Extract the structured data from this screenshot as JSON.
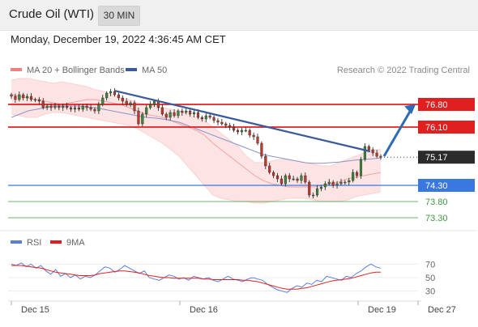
{
  "header": {
    "title": "Crude Oil (WTI)",
    "timeframe": "30 MIN"
  },
  "datetime": "Monday, December 19, 2022 4:36:45 AM CET",
  "legend": {
    "bollinger": {
      "label": "MA 20 + Bollinger Bands",
      "color": "#f08080"
    },
    "ma50": {
      "label": "MA 50",
      "color": "#3a5a9a"
    },
    "credit": "Research © 2022 Trading Central"
  },
  "rsi_legend": {
    "rsi": {
      "label": "RSI",
      "color": "#5b7fd6"
    },
    "ma9": {
      "label": "9MA",
      "color": "#e02020"
    }
  },
  "colors": {
    "resistance": "#e02020",
    "support_main": "#3a78e0",
    "support_minor": "#3c9a3c",
    "trend": "#3a5a9a",
    "current": "#222222"
  },
  "chart_data": {
    "type": "candlestick",
    "instrument": "Crude Oil (WTI)",
    "timeframe": "30 MIN",
    "x_tick_labels": [
      "Dec 15",
      "Dec 16",
      "Dec 19",
      "Dec 27"
    ],
    "y_ylim": [
      72.9,
      77.6
    ],
    "price_levels": [
      {
        "value": 76.8,
        "label": "76.80",
        "kind": "resistance"
      },
      {
        "value": 76.1,
        "label": "76.10",
        "kind": "resistance"
      },
      {
        "value": 75.17,
        "label": "75.17",
        "kind": "current"
      },
      {
        "value": 74.3,
        "label": "74.30",
        "kind": "support"
      },
      {
        "value": 73.8,
        "label": "73.80",
        "kind": "support"
      },
      {
        "value": 73.3,
        "label": "73.30",
        "kind": "support"
      }
    ],
    "closes": [
      77.05,
      76.95,
      77.1,
      77.0,
      77.05,
      76.95,
      76.95,
      76.9,
      76.7,
      76.75,
      76.7,
      76.75,
      76.7,
      76.75,
      76.7,
      76.65,
      76.7,
      76.65,
      76.75,
      76.7,
      76.65,
      76.6,
      76.8,
      77.0,
      77.15,
      77.2,
      77.1,
      77.0,
      76.9,
      76.8,
      76.85,
      76.6,
      76.2,
      76.5,
      76.7,
      76.8,
      76.9,
      76.7,
      76.5,
      76.4,
      76.55,
      76.45,
      76.6,
      76.55,
      76.6,
      76.5,
      76.55,
      76.4,
      76.35,
      76.45,
      76.4,
      76.3,
      76.25,
      76.2,
      76.15,
      76.1,
      76.0,
      75.95,
      76.0,
      76.0,
      75.85,
      75.8,
      75.6,
      75.2,
      74.9,
      74.7,
      74.6,
      74.5,
      74.35,
      74.6,
      74.5,
      74.5,
      74.45,
      74.6,
      74.4,
      74.0,
      74.0,
      74.2,
      74.25,
      74.35,
      74.4,
      74.3,
      74.35,
      74.4,
      74.4,
      74.45,
      74.7,
      74.6,
      75.1,
      75.5,
      75.4,
      75.3,
      75.2,
      75.17
    ],
    "bollinger": {
      "upper": [
        77.55,
        77.6,
        77.6,
        77.55,
        77.5,
        77.45,
        77.5,
        77.45,
        77.4,
        77.35,
        77.25,
        77.2,
        77.1,
        77.0,
        76.95,
        76.85,
        76.8,
        76.75,
        76.7,
        76.65,
        76.6,
        76.5,
        76.4,
        76.3,
        76.1,
        75.9,
        75.7,
        75.5,
        75.2,
        75.0,
        75.0,
        75.05,
        75.1,
        75.1,
        75.05,
        75.0,
        74.95,
        74.9,
        74.9,
        75.0,
        75.1,
        75.2,
        75.3,
        75.4,
        75.4
      ],
      "middle": [
        77.1,
        77.05,
        77.0,
        76.95,
        76.9,
        76.85,
        76.8,
        76.85,
        76.9,
        76.95,
        76.95,
        76.9,
        76.85,
        76.8,
        76.7,
        76.6,
        76.5,
        76.45,
        76.4,
        76.3,
        76.2,
        76.1,
        76.0,
        75.85,
        75.6,
        75.4,
        75.2,
        75.0,
        74.8,
        74.6,
        74.45,
        74.35,
        74.3,
        74.25,
        74.25,
        74.25,
        74.25,
        74.3,
        74.35,
        74.4,
        74.5,
        74.55,
        74.6,
        74.65,
        74.7
      ],
      "lower": [
        76.5,
        76.45,
        76.4,
        76.4,
        76.5,
        76.55,
        76.55,
        76.5,
        76.45,
        76.4,
        76.35,
        76.3,
        76.25,
        76.2,
        76.15,
        76.05,
        75.9,
        75.75,
        75.6,
        75.4,
        75.2,
        74.9,
        74.6,
        74.3,
        74.0,
        73.9,
        73.85,
        73.8,
        73.8,
        73.75,
        73.75,
        73.8,
        73.85,
        73.9,
        73.9,
        73.9,
        73.85,
        73.8,
        73.8,
        73.8,
        73.85,
        73.95,
        74.0,
        74.05,
        74.1
      ]
    },
    "ma50": [
      76.4,
      76.5,
      76.6,
      76.65,
      76.7,
      76.75,
      76.75,
      76.75,
      76.75,
      76.72,
      76.7,
      76.65,
      76.6,
      76.55,
      76.5,
      76.45,
      76.4,
      76.38,
      76.35,
      76.3,
      76.25,
      76.15,
      76.05,
      75.95,
      75.85,
      75.75,
      75.65,
      75.55,
      75.45,
      75.35,
      75.25,
      75.2,
      75.15,
      75.1,
      75.05,
      75.0,
      74.98,
      74.98,
      75.0,
      75.02,
      75.05,
      75.08,
      75.1,
      75.12,
      75.15
    ],
    "trendline": {
      "from": {
        "bar": 39,
        "price": 77.22
      },
      "to": {
        "bar": 135,
        "price": 75.35
      }
    },
    "arrow": {
      "from_price": 75.2,
      "to_price": 76.8
    },
    "rsi": {
      "ylim": [
        20,
        80
      ],
      "tick_labels": [
        70,
        50,
        30
      ],
      "rsi_values": [
        70,
        68,
        72,
        66,
        70,
        64,
        68,
        60,
        55,
        62,
        52,
        56,
        50,
        54,
        48,
        52,
        50,
        54,
        60,
        66,
        64,
        58,
        62,
        68,
        64,
        60,
        56,
        60,
        50,
        48,
        46,
        50,
        54,
        52,
        48,
        50,
        46,
        52,
        50,
        48,
        50,
        46,
        44,
        48,
        52,
        48,
        46,
        44,
        48,
        50,
        48,
        46,
        40,
        36,
        32,
        30,
        28,
        34,
        38,
        36,
        42,
        40,
        46,
        44,
        52,
        50,
        48,
        46,
        52,
        50,
        56,
        60,
        66,
        70,
        66,
        64
      ],
      "ma9_values": [
        68,
        68,
        68,
        67,
        66,
        65,
        64,
        62,
        60,
        58,
        57,
        56,
        55,
        54,
        53,
        53,
        53,
        54,
        56,
        57,
        58,
        59,
        60,
        60,
        59,
        58,
        57,
        55,
        53,
        52,
        51,
        50,
        50,
        49,
        49,
        49,
        49,
        49,
        49,
        48,
        48,
        47,
        47,
        47,
        47,
        47,
        47,
        46,
        46,
        45,
        44,
        42,
        40,
        38,
        36,
        34,
        33,
        33,
        33,
        34,
        35,
        37,
        39,
        41,
        43,
        45,
        46,
        47,
        48,
        49,
        51,
        53,
        55,
        57,
        58,
        58
      ]
    }
  }
}
